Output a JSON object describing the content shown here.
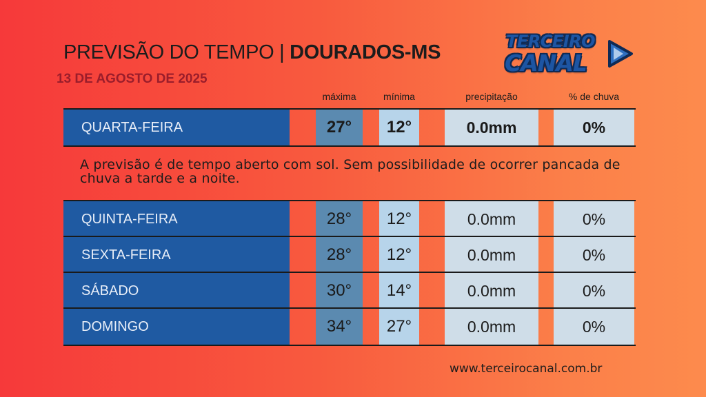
{
  "title": {
    "prefix": "PREVISÃO DO TEMPO | ",
    "city": "DOURADOS-MS"
  },
  "date": "13 DE AGOSTO DE 2025",
  "logo": {
    "line1": "TERCEIRO",
    "line2": "CANAL",
    "icon": "play-icon",
    "color": "#1d55a3"
  },
  "headers": {
    "max": "máxima",
    "min": "mínima",
    "prec": "precipitação",
    "pct": "% de chuva"
  },
  "today": {
    "day": "QUARTA-FEIRA",
    "max": "27°",
    "min": "12°",
    "prec": "0.0mm",
    "pct": "0%"
  },
  "description": "A previsão é de tempo aberto com sol. Sem possibilidade de ocorrer pancada de chuva a tarde e a noite.",
  "rows": [
    {
      "day": "QUINTA-FEIRA",
      "max": "28°",
      "min": "12°",
      "prec": "0.0mm",
      "pct": "0%"
    },
    {
      "day": "SEXTA-FEIRA",
      "max": "28°",
      "min": "12°",
      "prec": "0.0mm",
      "pct": "0%"
    },
    {
      "day": "SÁBADO",
      "max": "30°",
      "min": "14°",
      "prec": "0.0mm",
      "pct": "0%"
    },
    {
      "day": "DOMINGO",
      "max": "34°",
      "min": "27°",
      "prec": "0.0mm",
      "pct": "0%"
    }
  ],
  "website": "www.terceirocanal.com.br"
}
